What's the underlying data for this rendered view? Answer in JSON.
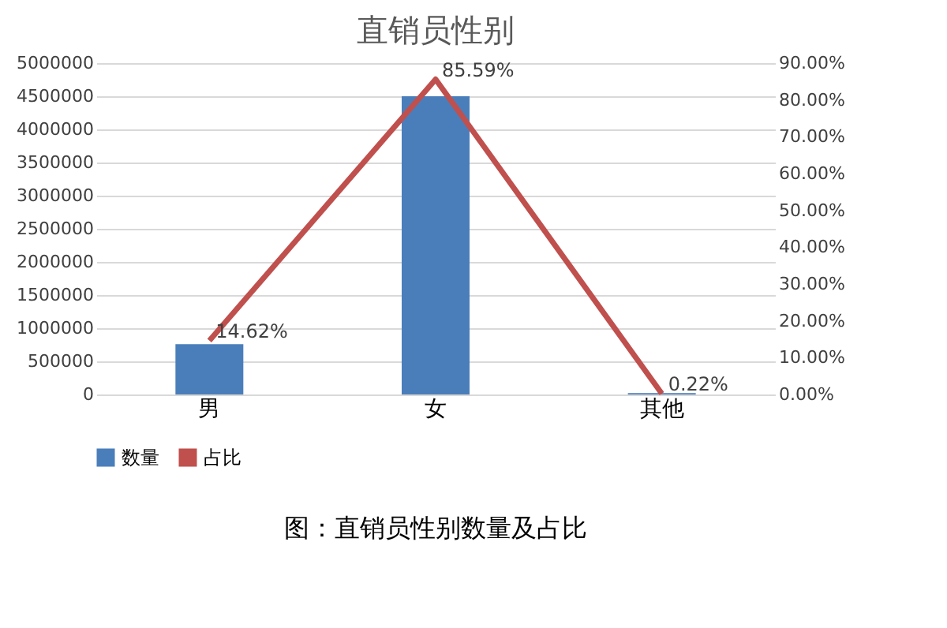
{
  "chart_data": {
    "type": "bar",
    "title": "直销员性别",
    "categories": [
      "男",
      "女",
      "其他"
    ],
    "series": [
      {
        "name": "数量",
        "color": "#4a7ebb",
        "values": [
          760000,
          4500000,
          20000
        ]
      },
      {
        "name": "占比",
        "type": "line",
        "axis": "y2",
        "color": "#c0504d",
        "values": [
          14.62,
          85.59,
          0.22
        ],
        "value_labels": [
          "14.62%",
          "85.59%",
          "0.22%"
        ]
      }
    ],
    "ylim": [
      0,
      5000000
    ],
    "yticks": [
      0,
      500000,
      1000000,
      1500000,
      2000000,
      2500000,
      3000000,
      3500000,
      4000000,
      4500000,
      5000000
    ],
    "y2lim": [
      0,
      90
    ],
    "y2ticks": [
      {
        "value": 0,
        "label": "0.00%"
      },
      {
        "value": 10,
        "label": "10.00%"
      },
      {
        "value": 20,
        "label": "20.00%"
      },
      {
        "value": 30,
        "label": "30.00%"
      },
      {
        "value": 40,
        "label": "40.00%"
      },
      {
        "value": 50,
        "label": "50.00%"
      },
      {
        "value": 60,
        "label": "60.00%"
      },
      {
        "value": 70,
        "label": "70.00%"
      },
      {
        "value": 80,
        "label": "80.00%"
      },
      {
        "value": 90,
        "label": "90.00%"
      }
    ],
    "grid": "y",
    "legend": "bottom",
    "line_style": "solid",
    "marker": "none",
    "annotations": [
      "图：直销员性别数量及占比"
    ]
  }
}
